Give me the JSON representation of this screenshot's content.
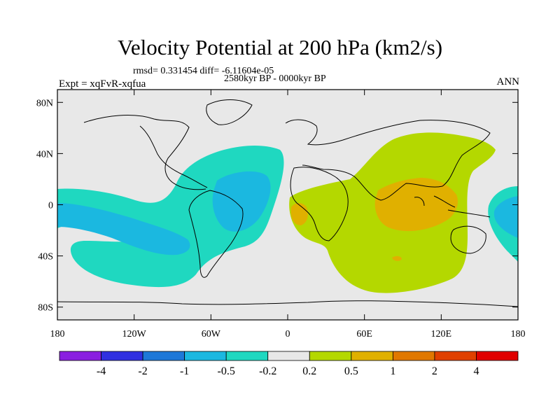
{
  "title": "Velocity Potential at 200 hPa (km2/s)",
  "stats": "rmsd= 0.331454 diff= -6.11604e-05",
  "period": "2580kyr BP - 0000kyr BP",
  "expt": "Expt = xqFvR-xqfua",
  "season": "ANN",
  "map": {
    "lon_range": [
      -180,
      180
    ],
    "lat_range": [
      -90,
      90
    ],
    "lat_ticks": [
      {
        "lat": 80,
        "label": "80N"
      },
      {
        "lat": 40,
        "label": "40N"
      },
      {
        "lat": 0,
        "label": "0"
      },
      {
        "lat": -40,
        "label": "40S"
      },
      {
        "lat": -80,
        "label": "80S"
      }
    ],
    "lon_ticks": [
      {
        "lon": -180,
        "label": "180"
      },
      {
        "lon": -120,
        "label": "120W"
      },
      {
        "lon": -60,
        "label": "60W"
      },
      {
        "lon": 0,
        "label": "0"
      },
      {
        "lon": 60,
        "label": "60E"
      },
      {
        "lon": 120,
        "label": "120E"
      },
      {
        "lon": 180,
        "label": "180"
      }
    ],
    "background_color": "#e8e8e8"
  },
  "colorbar": {
    "colors": [
      "#8a1fe0",
      "#3030e0",
      "#1e78d8",
      "#1bb8e0",
      "#1fd8c0",
      "#e8e8e8",
      "#b4d800",
      "#e0b000",
      "#e07800",
      "#e04000",
      "#e00000"
    ],
    "labels": [
      "-4",
      "-2",
      "-1",
      "-0.5",
      "-0.2",
      "0.2",
      "0.5",
      "1",
      "2",
      "4"
    ]
  }
}
